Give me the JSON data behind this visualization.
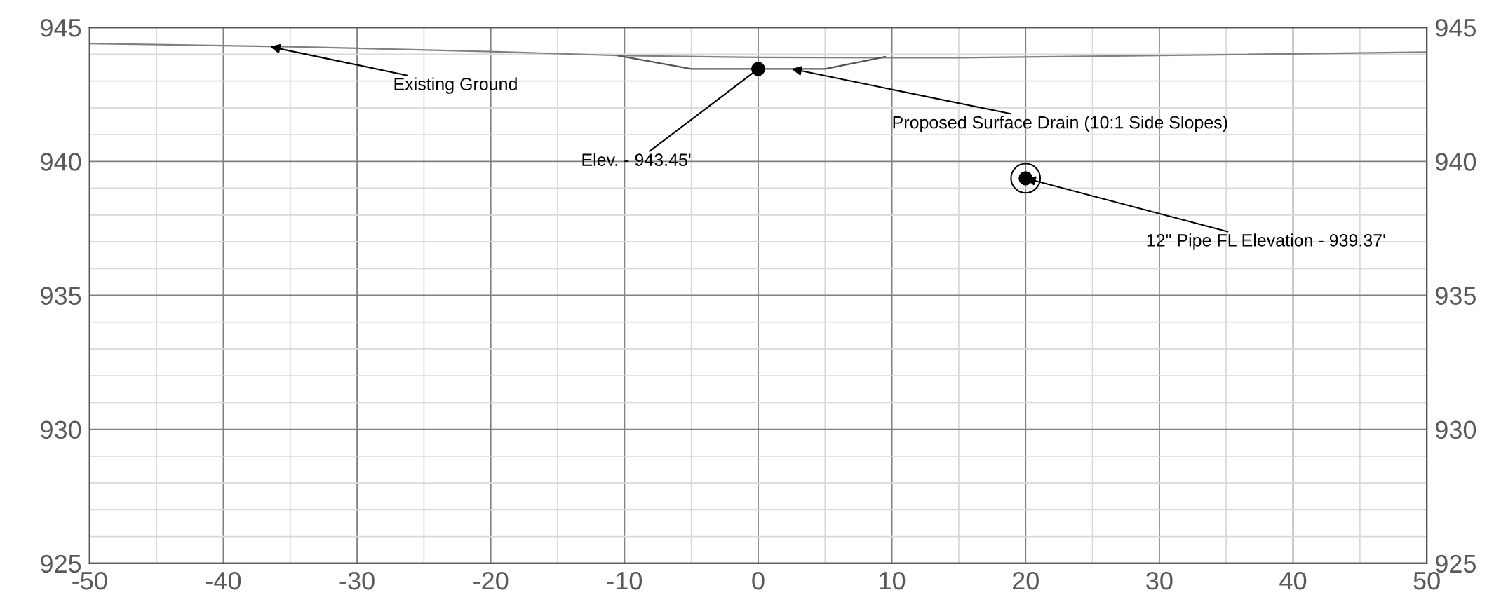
{
  "chart_data": {
    "type": "line",
    "series": [
      {
        "color": "#808080",
        "x": [
          -50,
          -35,
          -20,
          -10.5,
          0,
          10,
          15,
          30,
          50
        ],
        "values": [
          944.4,
          944.28,
          944.1,
          943.95,
          943.88,
          943.87,
          943.87,
          943.95,
          944.08
        ]
      },
      {
        "color": "#555555",
        "x": [
          -10.5,
          -5,
          5,
          9.5
        ],
        "values": [
          943.95,
          943.45,
          943.45,
          943.9
        ]
      },
      {
        "type": "scatter",
        "marker": "circle",
        "color": "#000000",
        "x": [
          0,
          20
        ],
        "values": [
          943.45,
          939.37
        ]
      }
    ],
    "xlim": [
      -50,
      50
    ],
    "xticks": [
      -50,
      -40,
      -30,
      -20,
      -10,
      0,
      10,
      20,
      30,
      40,
      50
    ],
    "ylim": [
      925,
      945
    ],
    "yticks": [
      925,
      930,
      935,
      940,
      945
    ],
    "y2lim": [
      925,
      945
    ],
    "y2ticks": [
      925,
      930,
      935,
      940,
      945
    ],
    "grid": true,
    "marker": "none",
    "line_style": "solid",
    "annotations": [
      {
        "text": "Existing Ground",
        "x": -36.5,
        "y": 944.28
      },
      {
        "text": "Elev. - 943.45'",
        "x": 0,
        "y": 943.45
      },
      {
        "text": "Proposed Surface Drain (10:1 Side Slopes)",
        "x": 2.5,
        "y": 943.45
      },
      {
        "text": "12\" Pipe FL Elevation - 939.37'",
        "x": 20,
        "y": 939.37
      }
    ]
  }
}
